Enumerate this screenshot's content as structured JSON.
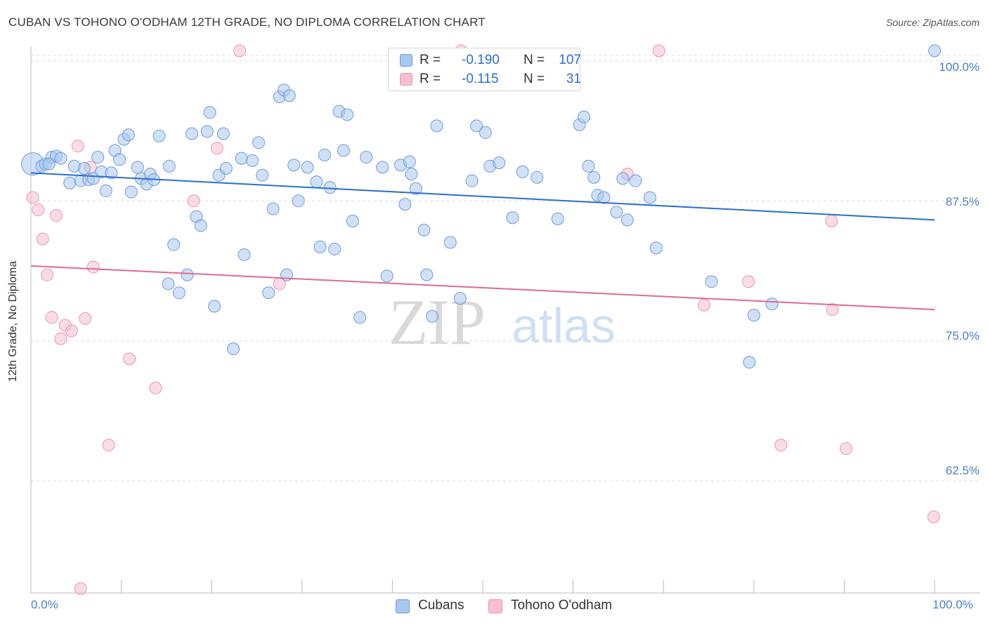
{
  "title": "CUBAN VS TOHONO O'ODHAM 12TH GRADE, NO DIPLOMA CORRELATION CHART",
  "source": "Source: ZipAtlas.com",
  "watermark": {
    "zip": "ZIP",
    "atlas": "atlas"
  },
  "legend": {
    "rows": [
      {
        "r_label": "R =",
        "r_value": "-0.190",
        "n_label": "N =",
        "n_value": "107"
      },
      {
        "r_label": "R =",
        "r_value": "-0.115",
        "n_label": "N =",
        "n_value": "31"
      }
    ]
  },
  "bottom_legend": [
    "Cubans",
    "Tohono O'odham"
  ],
  "colors": {
    "cubans_fill": "#a9c8f0",
    "cubans_stroke": "#6f9bd8",
    "cubans_line": "#2a6fce",
    "tohono_fill": "#f7bfd0",
    "tohono_stroke": "#e996b1",
    "tohono_line": "#e06a93",
    "tick_text": "#4a7fc6",
    "grid": "#dcdcdc"
  },
  "chart_data": {
    "type": "scatter",
    "title": "CUBAN VS TOHONO O'ODHAM 12TH GRADE, NO DIPLOMA CORRELATION CHART",
    "xlabel": "",
    "ylabel": "12th Grade, No Diploma",
    "xlim": [
      0,
      100
    ],
    "ylim": [
      52.5,
      101.3
    ],
    "x_tick_labels": [
      "0.0%",
      "100.0%"
    ],
    "y_ticks": [
      100,
      87.5,
      75,
      62.5
    ],
    "y_tick_labels": [
      "100.0%",
      "87.5%",
      "75.0%",
      "62.5%"
    ],
    "grid": true,
    "legend_position": "top-center",
    "series": [
      {
        "name": "Cubans",
        "r": -0.19,
        "n": 107,
        "trend": {
          "x": [
            0,
            100
          ],
          "y": [
            90.0,
            85.8
          ]
        },
        "points": [
          [
            0.2,
            90.8
          ],
          [
            1.2,
            90.6
          ],
          [
            1.6,
            90.8
          ],
          [
            2.3,
            91.4
          ],
          [
            2.8,
            91.5
          ],
          [
            3.3,
            91.3
          ],
          [
            4.3,
            89.1
          ],
          [
            4.8,
            90.6
          ],
          [
            5.5,
            89.3
          ],
          [
            5.9,
            90.4
          ],
          [
            6.4,
            89.4
          ],
          [
            6.9,
            89.5
          ],
          [
            7.4,
            91.4
          ],
          [
            7.8,
            90.1
          ],
          [
            8.3,
            88.4
          ],
          [
            8.9,
            90.0
          ],
          [
            9.3,
            92.0
          ],
          [
            9.8,
            91.2
          ],
          [
            10.3,
            93.0
          ],
          [
            10.8,
            93.4
          ],
          [
            11.1,
            88.3
          ],
          [
            11.8,
            90.5
          ],
          [
            12.2,
            89.5
          ],
          [
            12.8,
            89.0
          ],
          [
            13.2,
            89.9
          ],
          [
            13.6,
            89.4
          ],
          [
            14.2,
            93.3
          ],
          [
            15.3,
            90.6
          ],
          [
            15.8,
            83.6
          ],
          [
            15.2,
            80.1
          ],
          [
            16.4,
            79.3
          ],
          [
            17.3,
            80.9
          ],
          [
            17.8,
            93.5
          ],
          [
            18.3,
            86.1
          ],
          [
            18.8,
            85.3
          ],
          [
            19.5,
            93.7
          ],
          [
            19.8,
            95.4
          ],
          [
            20.3,
            78.1
          ],
          [
            20.8,
            89.8
          ],
          [
            21.3,
            93.5
          ],
          [
            21.6,
            90.4
          ],
          [
            22.4,
            74.3
          ],
          [
            23.3,
            91.3
          ],
          [
            23.6,
            82.7
          ],
          [
            24.5,
            91.1
          ],
          [
            25.2,
            92.7
          ],
          [
            25.6,
            89.8
          ],
          [
            26.3,
            79.3
          ],
          [
            26.8,
            86.8
          ],
          [
            27.5,
            96.8
          ],
          [
            28.0,
            97.4
          ],
          [
            28.3,
            80.9
          ],
          [
            28.6,
            96.9
          ],
          [
            29.1,
            90.7
          ],
          [
            29.6,
            87.5
          ],
          [
            30.6,
            90.5
          ],
          [
            31.6,
            89.2
          ],
          [
            32.0,
            83.4
          ],
          [
            32.5,
            91.6
          ],
          [
            33.1,
            88.7
          ],
          [
            33.6,
            83.2
          ],
          [
            34.1,
            95.5
          ],
          [
            34.6,
            92.0
          ],
          [
            35.0,
            95.2
          ],
          [
            35.6,
            85.7
          ],
          [
            36.4,
            77.1
          ],
          [
            37.1,
            91.4
          ],
          [
            38.9,
            90.5
          ],
          [
            39.4,
            80.8
          ],
          [
            40.9,
            90.7
          ],
          [
            41.4,
            87.2
          ],
          [
            41.9,
            91.0
          ],
          [
            42.1,
            89.9
          ],
          [
            42.6,
            88.6
          ],
          [
            43.5,
            84.9
          ],
          [
            43.8,
            80.9
          ],
          [
            44.4,
            77.2
          ],
          [
            44.9,
            94.2
          ],
          [
            46.4,
            83.8
          ],
          [
            47.5,
            78.8
          ],
          [
            48.8,
            89.3
          ],
          [
            49.3,
            94.2
          ],
          [
            50.3,
            93.6
          ],
          [
            50.8,
            90.6
          ],
          [
            51.8,
            90.9
          ],
          [
            53.3,
            86.0
          ],
          [
            54.4,
            90.1
          ],
          [
            56.0,
            89.6
          ],
          [
            58.3,
            85.9
          ],
          [
            60.7,
            94.3
          ],
          [
            61.2,
            95.0
          ],
          [
            61.7,
            90.6
          ],
          [
            62.3,
            89.6
          ],
          [
            62.7,
            88.0
          ],
          [
            63.4,
            87.8
          ],
          [
            64.8,
            86.5
          ],
          [
            65.5,
            89.5
          ],
          [
            66.0,
            85.8
          ],
          [
            66.9,
            89.3
          ],
          [
            68.5,
            87.8
          ],
          [
            69.2,
            83.3
          ],
          [
            75.3,
            80.3
          ],
          [
            79.5,
            73.1
          ],
          [
            80.0,
            77.3
          ],
          [
            82.0,
            78.3
          ],
          [
            100.0,
            100.9
          ],
          [
            2.0,
            90.8
          ]
        ]
      },
      {
        "name": "Tohono O'odham",
        "r": -0.115,
        "n": 31,
        "trend": {
          "x": [
            0,
            100
          ],
          "y": [
            81.7,
            77.8
          ]
        },
        "points": [
          [
            0.2,
            87.8
          ],
          [
            0.8,
            86.7
          ],
          [
            1.3,
            84.1
          ],
          [
            1.8,
            80.9
          ],
          [
            2.3,
            77.1
          ],
          [
            2.8,
            86.2
          ],
          [
            3.3,
            75.2
          ],
          [
            3.8,
            76.4
          ],
          [
            4.5,
            75.9
          ],
          [
            5.2,
            92.4
          ],
          [
            5.5,
            52.9
          ],
          [
            6.0,
            77.0
          ],
          [
            6.6,
            90.5
          ],
          [
            6.9,
            81.6
          ],
          [
            8.6,
            65.7
          ],
          [
            10.9,
            73.4
          ],
          [
            13.8,
            70.8
          ],
          [
            18.0,
            87.5
          ],
          [
            20.6,
            92.2
          ],
          [
            23.1,
            100.9
          ],
          [
            27.5,
            80.1
          ],
          [
            47.6,
            100.9
          ],
          [
            66.0,
            89.9
          ],
          [
            69.5,
            100.9
          ],
          [
            74.5,
            78.2
          ],
          [
            79.4,
            80.3
          ],
          [
            83.0,
            65.7
          ],
          [
            88.6,
            85.7
          ],
          [
            88.7,
            77.8
          ],
          [
            90.2,
            65.4
          ],
          [
            99.9,
            59.3
          ]
        ]
      }
    ]
  }
}
